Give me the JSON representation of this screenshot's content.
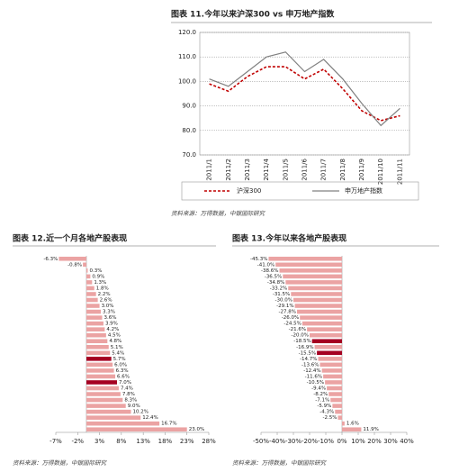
{
  "chart_data": [
    {
      "type": "line",
      "title": "图表 11.今年以来沪深300 vs 申万地产指数",
      "categories": [
        "2011/1",
        "2011/2",
        "2011/3",
        "2011/4",
        "2011/5",
        "2011/6",
        "2011/7",
        "2011/8",
        "2011/9",
        "2011/10",
        "2011/11"
      ],
      "ylim": [
        70,
        120
      ],
      "yticks": [
        {
          "value": 70,
          "label": "70.0"
        },
        {
          "value": 80,
          "label": "80.0"
        },
        {
          "value": 90,
          "label": "90.0"
        },
        {
          "value": 100,
          "label": "100.0"
        },
        {
          "value": 110,
          "label": "110.0"
        },
        {
          "value": 120,
          "label": "120.0"
        }
      ],
      "grid": true,
      "series": [
        {
          "name": "沪深300",
          "color": "#c00000",
          "dash": true,
          "values": [
            99,
            96,
            102,
            106,
            106,
            101,
            105,
            97,
            88,
            84,
            86
          ]
        },
        {
          "name": "申万地产指数",
          "color": "#808080",
          "dash": false,
          "values": [
            101,
            98,
            104,
            110,
            112,
            104,
            109,
            101,
            91,
            82,
            89
          ]
        }
      ]
    },
    {
      "type": "hbar",
      "title": "图表 12.近一个月各地产股表现",
      "categories": [
        null,
        null,
        null,
        null,
        null,
        null,
        null,
        null,
        null,
        null,
        null,
        null,
        null,
        null,
        null,
        null,
        null,
        null,
        null,
        null,
        null,
        null,
        null,
        null,
        null,
        null,
        null,
        null,
        null,
        null
      ],
      "values": [
        -6.3,
        -0.8,
        0.3,
        0.9,
        1.3,
        1.8,
        2.2,
        2.6,
        3.0,
        3.3,
        3.6,
        3.9,
        4.2,
        4.5,
        4.8,
        5.1,
        5.4,
        5.7,
        6.0,
        6.3,
        6.6,
        7.0,
        7.4,
        7.8,
        8.3,
        9.0,
        10.2,
        12.4,
        16.7,
        23.0
      ],
      "value_labels": [
        "-6.3%",
        "-0.8%",
        "0.3%",
        "0.9%",
        "1.3%",
        "1.8%",
        "2.2%",
        "2.6%",
        "3.0%",
        "3.3%",
        "3.6%",
        "3.9%",
        "4.2%",
        "4.5%",
        "4.8%",
        "5.1%",
        "5.4%",
        "5.7%",
        "6.0%",
        "6.3%",
        "6.6%",
        "7.0%",
        "7.4%",
        "7.8%",
        "8.3%",
        "9.0%",
        "10.2%",
        "12.4%",
        "16.7%",
        "23.0%"
      ],
      "color": "#eba3a3",
      "highlight_color": "#a50021",
      "highlight": [
        17,
        21
      ],
      "xlim": [
        -7,
        28
      ],
      "xticks": [
        {
          "value": -7,
          "label": "-7%"
        },
        {
          "value": -2,
          "label": "-2%"
        },
        {
          "value": 3,
          "label": "3%"
        },
        {
          "value": 8,
          "label": "8%"
        },
        {
          "value": 13,
          "label": "13%"
        },
        {
          "value": 18,
          "label": "18%"
        },
        {
          "value": 23,
          "label": "23%"
        },
        {
          "value": 28,
          "label": "28%"
        }
      ]
    },
    {
      "type": "hbar",
      "title": "图表 13.今年以来各地产股表现",
      "categories": [
        null,
        null,
        null,
        null,
        null,
        null,
        null,
        null,
        null,
        null,
        null,
        null,
        null,
        null,
        null,
        null,
        null,
        null,
        null,
        null,
        null,
        null,
        null,
        null,
        null,
        null,
        null,
        null,
        null,
        null
      ],
      "values": [
        -45.3,
        -41.0,
        -38.6,
        -36.5,
        -34.8,
        -33.2,
        -31.5,
        -30.0,
        -29.1,
        -27.8,
        -26.0,
        -24.5,
        -21.6,
        -20.0,
        -18.5,
        -16.9,
        -15.5,
        -14.7,
        -13.6,
        -12.4,
        -11.6,
        -10.5,
        -9.4,
        -8.2,
        -7.1,
        -5.9,
        -4.3,
        -2.5,
        1.6,
        11.9
      ],
      "value_labels": [
        "-45.3%",
        "-41.0%",
        "-38.6%",
        "-36.5%",
        "-34.8%",
        "-33.2%",
        "-31.5%",
        "-30.0%",
        "-29.1%",
        "-27.8%",
        "-26.0%",
        "-24.5%",
        "-21.6%",
        "-20.0%",
        "-18.5%",
        "-16.9%",
        "-15.5%",
        "-14.7%",
        "-13.6%",
        "-12.4%",
        "-11.6%",
        "-10.5%",
        "-9.4%",
        "-8.2%",
        "-7.1%",
        "-5.9%",
        "-4.3%",
        "-2.5%",
        "1.6%",
        "11.9%"
      ],
      "color": "#eba3a3",
      "highlight_color": "#a50021",
      "highlight": [
        14,
        16
      ],
      "xlim": [
        -50,
        40
      ],
      "xticks": [
        {
          "value": -50,
          "label": "-50%"
        },
        {
          "value": -40,
          "label": "-40%"
        },
        {
          "value": -30,
          "label": "-30%"
        },
        {
          "value": -20,
          "label": "-20%"
        },
        {
          "value": -10,
          "label": "-10%"
        },
        {
          "value": 0,
          "label": "0%"
        },
        {
          "value": 10,
          "label": "10%"
        },
        {
          "value": 20,
          "label": "20%"
        },
        {
          "value": 30,
          "label": "30%"
        },
        {
          "value": 40,
          "label": "40%"
        }
      ]
    }
  ],
  "sources": [
    "资料来源：万得数据，中银国际研究",
    "资料来源：万得数据，中银国际研究",
    "资料来源：万得数据，中银国际研究"
  ]
}
